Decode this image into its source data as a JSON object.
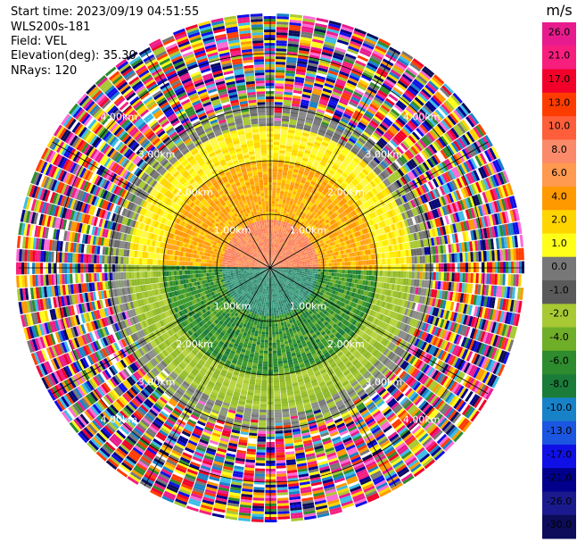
{
  "header": {
    "start_time": "Start time: 2023/09/19 04:51:55",
    "instrument": "WLS200s-181",
    "field": "Field: VEL",
    "elevation": "Elevation(deg): 35.30",
    "nrays": "NRays: 120"
  },
  "colorbar": {
    "unit": "m/s",
    "ticks": [
      "26.0",
      "21.0",
      "17.0",
      "13.0",
      "10.0",
      "8.0",
      "6.0",
      "4.0",
      "2.0",
      "1.0",
      "0.0",
      "-1.0",
      "-2.0",
      "-4.0",
      "-6.0",
      "-8.0",
      "-10.0",
      "-13.0",
      "-17.0",
      "-21.0",
      "-26.0",
      "-30.0"
    ],
    "colors": [
      "#e81b8e",
      "#f71e7e",
      "#f2002a",
      "#ff3c00",
      "#ff5e3a",
      "#fb8a6a",
      "#ff9a50",
      "#ff9900",
      "#ffd500",
      "#ffff1a",
      "#777777",
      "#5a5a5a",
      "#a7c933",
      "#6fae28",
      "#2e8b2e",
      "#1b7c3a",
      "#1882c8",
      "#1a56e0",
      "#1010e6",
      "#00008c",
      "#1a1a8e",
      "#0c0c5a"
    ]
  },
  "chart_data": {
    "type": "heatmap",
    "projection": "polar PPI",
    "field": "VEL",
    "nrays": 120,
    "range_ring_labels": [
      "1.00km",
      "2.00km",
      "3.00km",
      "4.00km"
    ],
    "range_rings_km": [
      1,
      2,
      3,
      4
    ],
    "max_range_km": 4.7,
    "bands": [
      {
        "max_km": 0.9,
        "north": "orange-red",
        "south": "teal"
      },
      {
        "max_km": 2.0,
        "north": "orange-yellow",
        "south": "green"
      },
      {
        "max_km": 2.6,
        "north": "yellow",
        "south": "yellow-green"
      },
      {
        "max_km": 3.0,
        "north": "gray",
        "south": "gray-green"
      },
      {
        "max_km": 4.7,
        "north": "noise",
        "south": "noise"
      }
    ]
  }
}
